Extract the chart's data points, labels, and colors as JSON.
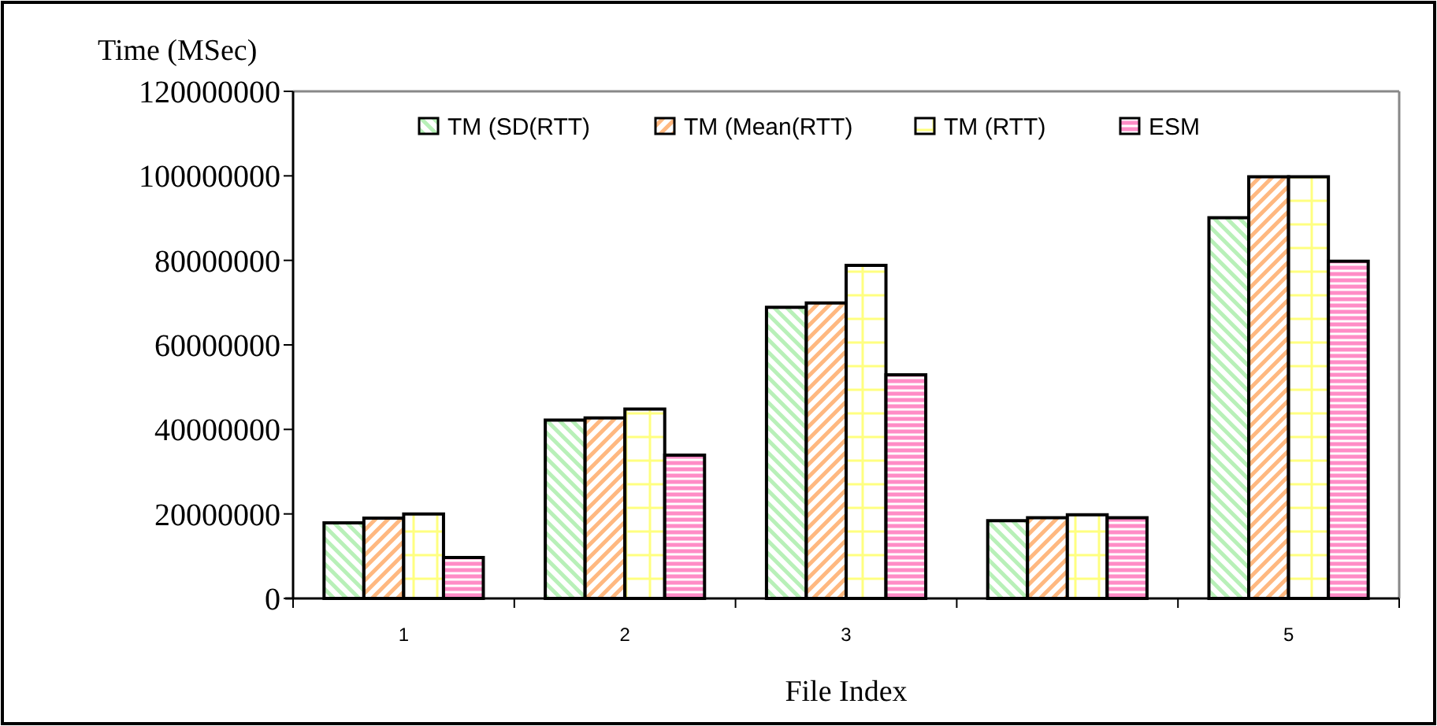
{
  "chart_data": {
    "type": "bar",
    "xlabel": "File Index",
    "ylabel": "Time (MSec)",
    "categories": [
      "1",
      "2",
      "3",
      null,
      "5"
    ],
    "series": [
      {
        "name": "TM (SD(RTT)",
        "color": "#b8f0b8",
        "values": [
          17900000,
          42200000,
          68900000,
          18400000,
          90100000
        ]
      },
      {
        "name": "TM (Mean(RTT)",
        "color": "#ffb880",
        "values": [
          19000000,
          42700000,
          69900000,
          19100000,
          99800000
        ]
      },
      {
        "name": "TM (RTT)",
        "color": "#ffff80",
        "values": [
          20000000,
          44800000,
          78800000,
          19800000,
          99800000
        ]
      },
      {
        "name": "ESM",
        "color": "#ff8cc6",
        "values": [
          9700000,
          33900000,
          52900000,
          19100000,
          79800000
        ]
      }
    ],
    "ylim": [
      0,
      120000000
    ],
    "yticks": [
      0,
      20000000,
      40000000,
      60000000,
      80000000,
      100000000,
      120000000
    ],
    "grid": false,
    "legend": "top"
  }
}
